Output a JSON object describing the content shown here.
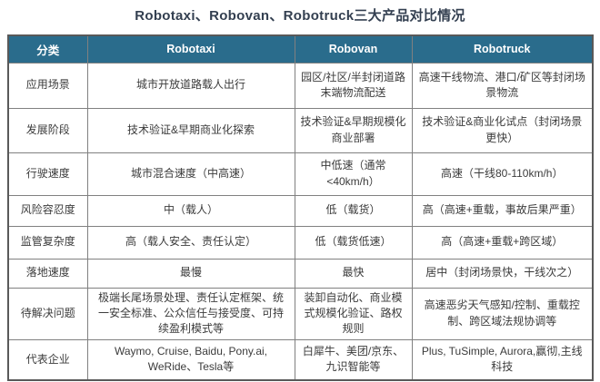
{
  "title": "Robotaxi、Robovan、Robotruck三大产品对比情况",
  "colors": {
    "header_bg": "#2A6C8C",
    "header_text": "#FFFFFF",
    "title_text": "#333F50",
    "body_text": "#3B3B3B",
    "grid_border": "#808080",
    "outer_border": "#595959",
    "background": "#FFFFFF"
  },
  "chart_data": {
    "type": "table",
    "title": "Robotaxi、Robovan、Robotruck三大产品对比情况",
    "columns": [
      "分类",
      "Robotaxi",
      "Robovan",
      "Robotruck"
    ],
    "rows": [
      {
        "label": "应用场景",
        "robotaxi": "城市开放道路载人出行",
        "robovan": "园区/社区/半封闭道路末端物流配送",
        "robotruck": "高速干线物流、港口/矿区等封闭场景物流"
      },
      {
        "label": "发展阶段",
        "robotaxi": "技术验证&早期商业化探索",
        "robovan": "技术验证&早期规模化商业部署",
        "robotruck": "技术验证&商业化试点（封闭场景更快）"
      },
      {
        "label": "行驶速度",
        "robotaxi": "城市混合速度（中高速）",
        "robovan": "中低速（通常<40km/h）",
        "robotruck": "高速（干线80-110km/h）"
      },
      {
        "label": "风险容忍度",
        "robotaxi": "中（载人）",
        "robovan": "低（载货）",
        "robotruck": "高（高速+重载，事故后果严重）"
      },
      {
        "label": "监管复杂度",
        "robotaxi": "高（载人安全、责任认定）",
        "robovan": "低（载货低速）",
        "robotruck": "高（高速+重载+跨区域）"
      },
      {
        "label": "落地速度",
        "robotaxi": "最慢",
        "robovan": "最快",
        "robotruck": "居中（封闭场景快，干线次之）"
      },
      {
        "label": "待解决问题",
        "robotaxi": "极端长尾场景处理、责任认定框架、统一安全标准、公众信任与接受度、可持续盈利模式等",
        "robovan": "装卸自动化、商业模式规模化验证、路权规则",
        "robotruck": "高速恶劣天气感知/控制、重载控制、跨区域法规协调等"
      },
      {
        "label": "代表企业",
        "robotaxi": "Waymo, Cruise, Baidu, Pony.ai, WeRide、Tesla等",
        "robovan": "白犀牛、美团/京东、九识智能等",
        "robotruck": "Plus, TuSimple, Aurora,赢彻,主线科技"
      }
    ]
  }
}
